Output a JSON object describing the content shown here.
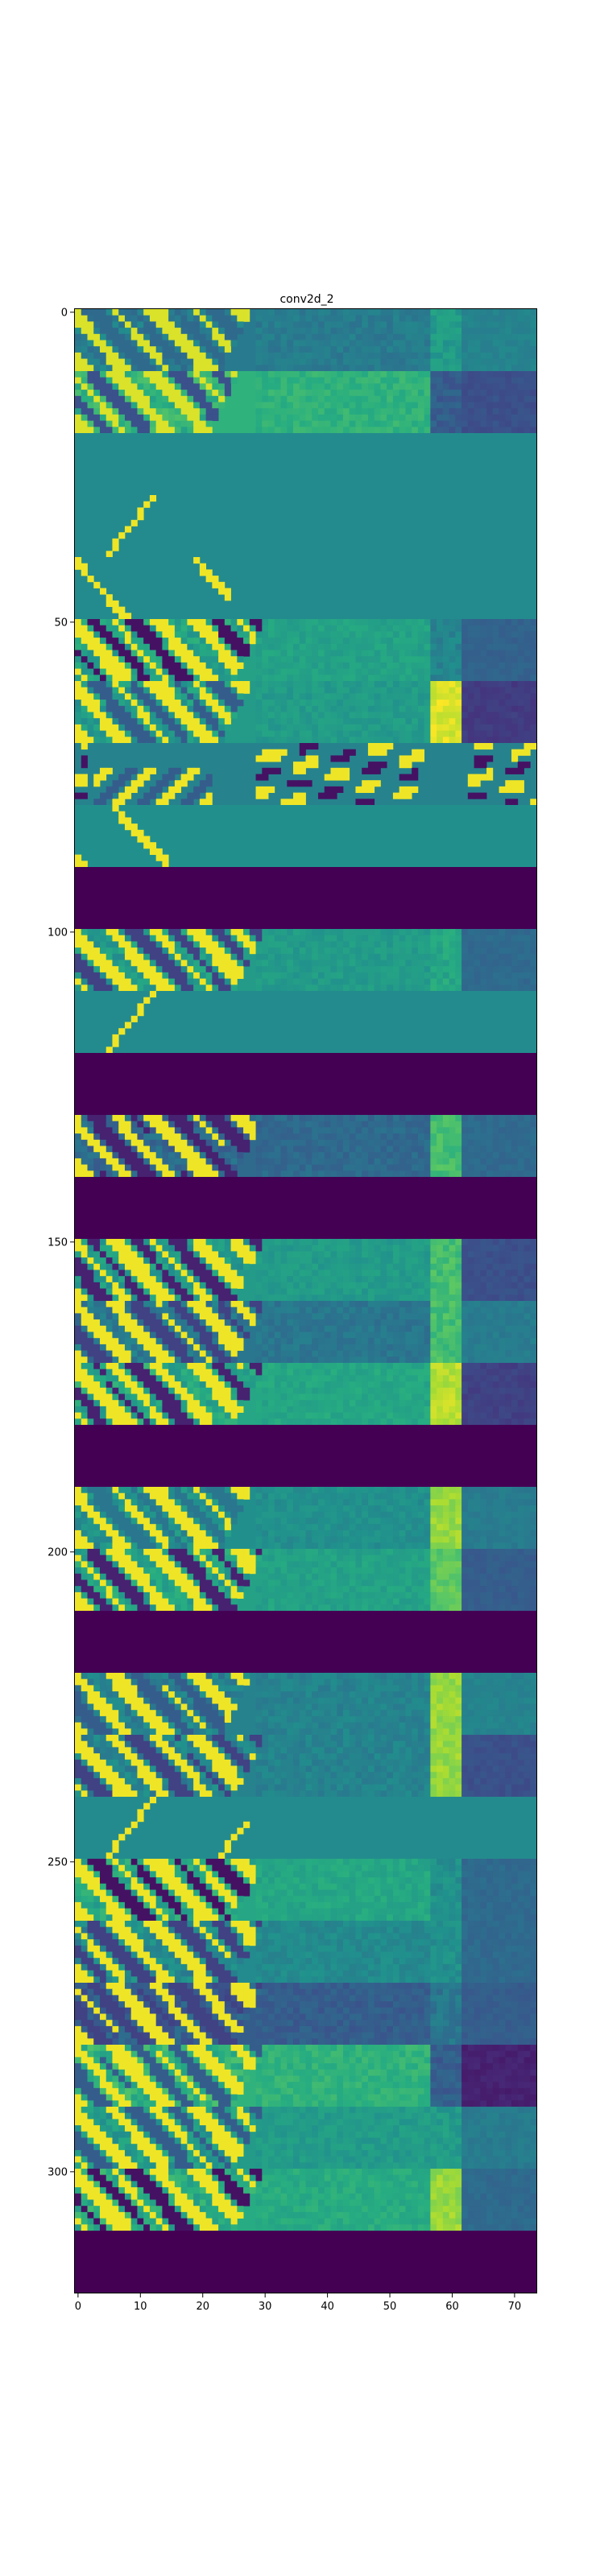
{
  "chart_data": {
    "type": "heatmap",
    "title": "conv2d_2",
    "colormap": "viridis",
    "x_range": [
      0,
      74
    ],
    "y_range": [
      0,
      320
    ],
    "x_ticks": [
      0,
      10,
      20,
      30,
      40,
      50,
      60,
      70
    ],
    "y_ticks": [
      0,
      50,
      100,
      150,
      200,
      250,
      300
    ],
    "feature_map_rows": 32,
    "rows_per_map": 10,
    "maps": [
      {
        "pattern": "stripes",
        "bg": 0.42,
        "right": 0.45,
        "edge": 0.55,
        "high": 0.95,
        "low": 0.35,
        "diagExtent": 28,
        "sharpEdge": false
      },
      {
        "pattern": "stripes",
        "bg": 0.65,
        "right": 0.25,
        "edge": 0.15,
        "high": 0.95,
        "low": 0.25,
        "diagExtent": 26,
        "sharpEdge": true
      },
      {
        "pattern": "flat",
        "bg": 0.48
      },
      {
        "pattern": "dots",
        "bg": 0.48,
        "high": 0.98
      },
      {
        "pattern": "stripes",
        "bg": 0.48,
        "right": 0.48,
        "edge": 0.48,
        "high": 0.98,
        "low": 0.48,
        "diagExtent": 28,
        "sparse": true
      },
      {
        "pattern": "stripes",
        "bg": 0.58,
        "right": 0.32,
        "edge": 0.45,
        "high": 0.98,
        "low": 0.05,
        "diagExtent": 30,
        "sharpEdge": false
      },
      {
        "pattern": "stripes",
        "bg": 0.55,
        "right": 0.18,
        "edge": 0.8,
        "high": 0.98,
        "low": 0.3,
        "diagExtent": 28,
        "sharpEdge": true
      },
      {
        "pattern": "noisy",
        "bg": 0.45,
        "high": 0.98
      },
      {
        "pattern": "stripes",
        "bg": 0.5,
        "right": 0.5,
        "edge": 0.5,
        "high": 0.98,
        "low": 0.5,
        "diagExtent": 24,
        "sparse": true
      },
      {
        "pattern": "dead",
        "bg": 0.0
      },
      {
        "pattern": "stripes",
        "bg": 0.55,
        "right": 0.35,
        "edge": 0.6,
        "high": 0.98,
        "low": 0.2,
        "diagExtent": 30,
        "sharpEdge": false
      },
      {
        "pattern": "dots",
        "bg": 0.48,
        "high": 0.98
      },
      {
        "pattern": "dead",
        "bg": 0.0
      },
      {
        "pattern": "stripes",
        "bg": 0.35,
        "right": 0.35,
        "edge": 0.7,
        "high": 0.98,
        "low": 0.1,
        "diagExtent": 30,
        "sharpEdge": false
      },
      {
        "pattern": "dead",
        "bg": 0.0
      },
      {
        "pattern": "stripes",
        "bg": 0.55,
        "right": 0.25,
        "edge": 0.7,
        "high": 0.98,
        "low": 0.1,
        "diagExtent": 30,
        "sharpEdge": false
      },
      {
        "pattern": "stripes",
        "bg": 0.4,
        "right": 0.42,
        "edge": 0.7,
        "high": 0.98,
        "low": 0.2,
        "diagExtent": 30,
        "sharpEdge": false
      },
      {
        "pattern": "stripes",
        "bg": 0.6,
        "right": 0.2,
        "edge": 0.75,
        "high": 0.98,
        "low": 0.1,
        "diagExtent": 30,
        "sharpEdge": true
      },
      {
        "pattern": "dead",
        "bg": 0.0
      },
      {
        "pattern": "stripes",
        "bg": 0.5,
        "right": 0.42,
        "edge": 0.85,
        "high": 0.98,
        "low": 0.4,
        "diagExtent": 28,
        "sharpEdge": false
      },
      {
        "pattern": "stripes",
        "bg": 0.58,
        "right": 0.3,
        "edge": 0.75,
        "high": 0.98,
        "low": 0.1,
        "diagExtent": 30,
        "sharpEdge": false
      },
      {
        "pattern": "dead",
        "bg": 0.0
      },
      {
        "pattern": "stripes",
        "bg": 0.45,
        "right": 0.45,
        "edge": 0.85,
        "high": 0.98,
        "low": 0.3,
        "diagExtent": 28,
        "sharpEdge": false
      },
      {
        "pattern": "stripes",
        "bg": 0.45,
        "right": 0.25,
        "edge": 0.7,
        "high": 0.98,
        "low": 0.2,
        "diagExtent": 30,
        "sharpEdge": true
      },
      {
        "pattern": "dots",
        "bg": 0.48,
        "high": 0.98
      },
      {
        "pattern": "stripes",
        "bg": 0.6,
        "right": 0.35,
        "edge": 0.5,
        "high": 0.98,
        "low": 0.05,
        "diagExtent": 30,
        "sharpEdge": false
      },
      {
        "pattern": "stripes",
        "bg": 0.48,
        "right": 0.35,
        "edge": 0.5,
        "high": 0.98,
        "low": 0.2,
        "diagExtent": 30,
        "sharpEdge": false
      },
      {
        "pattern": "stripes",
        "bg": 0.3,
        "right": 0.3,
        "edge": 0.4,
        "high": 0.98,
        "low": 0.2,
        "diagExtent": 30,
        "sharpEdge": false
      },
      {
        "pattern": "stripes",
        "bg": 0.65,
        "right": 0.1,
        "edge": 0.15,
        "high": 0.98,
        "low": 0.3,
        "diagExtent": 30,
        "sharpEdge": true
      },
      {
        "pattern": "stripes",
        "bg": 0.55,
        "right": 0.42,
        "edge": 0.55,
        "high": 0.98,
        "low": 0.3,
        "diagExtent": 30,
        "sharpEdge": false
      },
      {
        "pattern": "stripes",
        "bg": 0.62,
        "right": 0.35,
        "edge": 0.85,
        "high": 0.98,
        "low": 0.05,
        "diagExtent": 30,
        "sharpEdge": false
      },
      {
        "pattern": "dead",
        "bg": 0.0
      }
    ]
  }
}
